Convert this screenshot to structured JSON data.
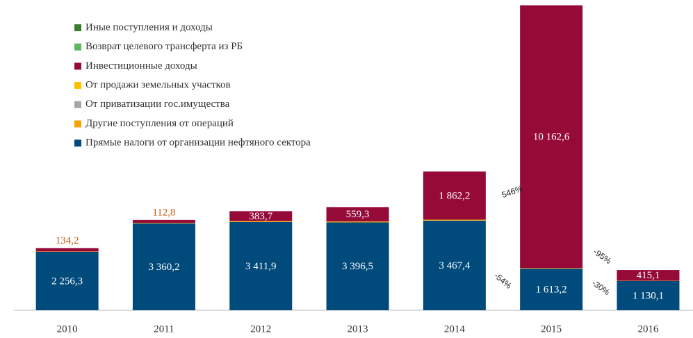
{
  "chart_data": {
    "type": "bar",
    "stacked": true,
    "categories": [
      "2010",
      "2011",
      "2012",
      "2013",
      "2014",
      "2015",
      "2016"
    ],
    "ylim": [
      0,
      12000
    ],
    "series": [
      {
        "name": "Прямые налоги от организации нефтяного сектора",
        "color": "#004a7c",
        "values": [
          2256.3,
          3360.2,
          3411.9,
          3396.5,
          3467.4,
          1613.2,
          1130.1
        ],
        "value_labels": [
          "2 256,3",
          "3 360,2",
          "3 411,9",
          "3 396,5",
          "3 467,4",
          "1 613,2",
          "1 130,1"
        ]
      },
      {
        "name": "Другие поступления от операций",
        "color": "#f4a300",
        "values": [
          10,
          10,
          15,
          15,
          15,
          10,
          5
        ]
      },
      {
        "name": "От приватизации гос.имущества",
        "color": "#a6a6a6",
        "values": [
          0,
          0,
          0,
          0,
          0,
          0,
          0
        ]
      },
      {
        "name": "От продажи земельных участков",
        "color": "#ffc000",
        "values": [
          5,
          10,
          20,
          20,
          20,
          10,
          5
        ]
      },
      {
        "name": "Инвестиционные доходы",
        "color": "#960a38",
        "values": [
          134.2,
          112.8,
          383.7,
          559.3,
          1862.2,
          10162.6,
          415.1
        ],
        "value_labels": [
          "134,2",
          "112,8",
          "383,7",
          "559,3",
          "1 862,2",
          "10 162,6",
          "415,1"
        ]
      },
      {
        "name": "Возврат целевого трансферта из РБ",
        "color": "#5cb85c",
        "values": [
          0,
          0,
          0,
          0,
          0,
          0,
          0
        ]
      },
      {
        "name": "Иные поступления и доходы",
        "color": "#3a7d2c",
        "values": [
          0,
          0,
          0,
          0,
          0,
          0,
          0
        ]
      }
    ],
    "annotations": [
      "546%",
      "-54%",
      "-95%",
      "-30%"
    ]
  }
}
